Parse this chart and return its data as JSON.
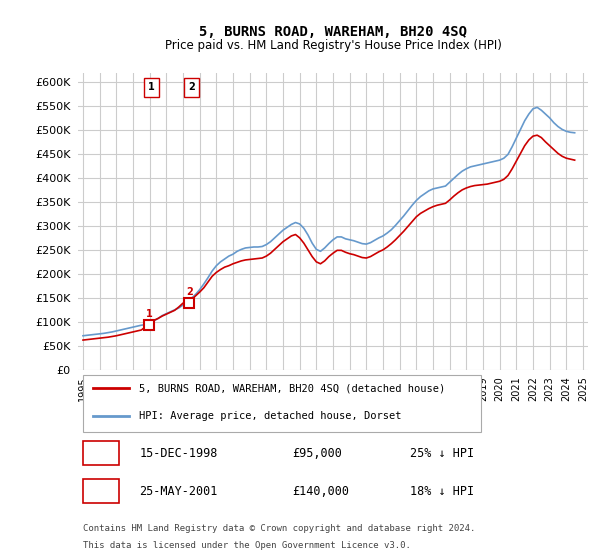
{
  "title": "5, BURNS ROAD, WAREHAM, BH20 4SQ",
  "subtitle": "Price paid vs. HM Land Registry's House Price Index (HPI)",
  "legend_line1": "5, BURNS ROAD, WAREHAM, BH20 4SQ (detached house)",
  "legend_line2": "HPI: Average price, detached house, Dorset",
  "footer1": "Contains HM Land Registry data © Crown copyright and database right 2024.",
  "footer2": "This data is licensed under the Open Government Licence v3.0.",
  "transaction1_label": "1",
  "transaction1_date": "15-DEC-1998",
  "transaction1_price": "£95,000",
  "transaction1_hpi": "25% ↓ HPI",
  "transaction2_label": "2",
  "transaction2_date": "25-MAY-2001",
  "transaction2_price": "£140,000",
  "transaction2_hpi": "18% ↓ HPI",
  "red_color": "#cc0000",
  "blue_color": "#6699cc",
  "background_color": "#ffffff",
  "grid_color": "#cccccc",
  "ylim": [
    0,
    620000
  ],
  "yticks": [
    0,
    50000,
    100000,
    150000,
    200000,
    250000,
    300000,
    350000,
    400000,
    450000,
    500000,
    550000,
    600000
  ],
  "hpi_data": {
    "years_float": [
      1995.0,
      1995.25,
      1995.5,
      1995.75,
      1996.0,
      1996.25,
      1996.5,
      1996.75,
      1997.0,
      1997.25,
      1997.5,
      1997.75,
      1998.0,
      1998.25,
      1998.5,
      1998.92,
      1999.0,
      1999.25,
      1999.5,
      1999.75,
      2000.0,
      2000.25,
      2000.5,
      2000.75,
      2001.0,
      2001.25,
      2001.5,
      2001.75,
      2002.0,
      2002.25,
      2002.5,
      2002.75,
      2003.0,
      2003.25,
      2003.5,
      2003.75,
      2004.0,
      2004.25,
      2004.5,
      2004.75,
      2005.0,
      2005.25,
      2005.5,
      2005.75,
      2006.0,
      2006.25,
      2006.5,
      2006.75,
      2007.0,
      2007.25,
      2007.5,
      2007.75,
      2008.0,
      2008.25,
      2008.5,
      2008.75,
      2009.0,
      2009.25,
      2009.5,
      2009.75,
      2010.0,
      2010.25,
      2010.5,
      2010.75,
      2011.0,
      2011.25,
      2011.5,
      2011.75,
      2012.0,
      2012.25,
      2012.5,
      2012.75,
      2013.0,
      2013.25,
      2013.5,
      2013.75,
      2014.0,
      2014.25,
      2014.5,
      2014.75,
      2015.0,
      2015.25,
      2015.5,
      2015.75,
      2016.0,
      2016.25,
      2016.5,
      2016.75,
      2017.0,
      2017.25,
      2017.5,
      2017.75,
      2018.0,
      2018.25,
      2018.5,
      2018.75,
      2019.0,
      2019.25,
      2019.5,
      2019.75,
      2020.0,
      2020.25,
      2020.5,
      2020.75,
      2021.0,
      2021.25,
      2021.5,
      2021.75,
      2022.0,
      2022.25,
      2022.5,
      2022.75,
      2023.0,
      2023.25,
      2023.5,
      2023.75,
      2024.0,
      2024.25,
      2024.5
    ],
    "values": [
      72000,
      73000,
      74000,
      75000,
      76000,
      77000,
      78500,
      80000,
      82000,
      84000,
      86000,
      88000,
      90000,
      92000,
      94000,
      96000,
      99000,
      103000,
      108000,
      114000,
      118000,
      122000,
      126000,
      130000,
      136000,
      142000,
      150000,
      158000,
      168000,
      180000,
      193000,
      207000,
      218000,
      226000,
      232000,
      238000,
      242000,
      248000,
      252000,
      255000,
      256000,
      257000,
      257000,
      258000,
      262000,
      268000,
      276000,
      284000,
      292000,
      298000,
      304000,
      308000,
      305000,
      296000,
      282000,
      265000,
      252000,
      248000,
      255000,
      264000,
      272000,
      278000,
      278000,
      274000,
      272000,
      270000,
      267000,
      264000,
      263000,
      266000,
      271000,
      276000,
      280000,
      286000,
      293000,
      302000,
      312000,
      322000,
      333000,
      344000,
      354000,
      362000,
      368000,
      374000,
      378000,
      380000,
      382000,
      384000,
      392000,
      400000,
      408000,
      415000,
      420000,
      424000,
      426000,
      428000,
      430000,
      432000,
      434000,
      436000,
      438000,
      442000,
      450000,
      466000,
      484000,
      502000,
      520000,
      534000,
      545000,
      548000,
      542000,
      534000,
      526000,
      516000,
      508000,
      502000,
      498000,
      496000,
      495000
    ]
  },
  "red_data": {
    "years_float": [
      1995.0,
      1995.25,
      1995.5,
      1995.75,
      1996.0,
      1996.25,
      1996.5,
      1996.75,
      1997.0,
      1997.25,
      1997.5,
      1997.75,
      1998.0,
      1998.25,
      1998.5,
      1998.92,
      1999.0,
      1999.25,
      1999.5,
      1999.75,
      2000.0,
      2000.25,
      2000.5,
      2000.75,
      2001.0,
      2001.38,
      2001.5,
      2001.75,
      2002.0,
      2002.25,
      2002.5,
      2002.75,
      2003.0,
      2003.25,
      2003.5,
      2003.75,
      2004.0,
      2004.25,
      2004.5,
      2004.75,
      2005.0,
      2005.25,
      2005.5,
      2005.75,
      2006.0,
      2006.25,
      2006.5,
      2006.75,
      2007.0,
      2007.25,
      2007.5,
      2007.75,
      2008.0,
      2008.25,
      2008.5,
      2008.75,
      2009.0,
      2009.25,
      2009.5,
      2009.75,
      2010.0,
      2010.25,
      2010.5,
      2010.75,
      2011.0,
      2011.25,
      2011.5,
      2011.75,
      2012.0,
      2012.25,
      2012.5,
      2012.75,
      2013.0,
      2013.25,
      2013.5,
      2013.75,
      2014.0,
      2014.25,
      2014.5,
      2014.75,
      2015.0,
      2015.25,
      2015.5,
      2015.75,
      2016.0,
      2016.25,
      2016.5,
      2016.75,
      2017.0,
      2017.25,
      2017.5,
      2017.75,
      2018.0,
      2018.25,
      2018.5,
      2018.75,
      2019.0,
      2019.25,
      2019.5,
      2019.75,
      2020.0,
      2020.25,
      2020.5,
      2020.75,
      2021.0,
      2021.25,
      2021.5,
      2021.75,
      2022.0,
      2022.25,
      2022.5,
      2022.75,
      2023.0,
      2023.25,
      2023.5,
      2023.75,
      2024.0,
      2024.25,
      2024.5
    ],
    "values": [
      63000,
      64000,
      65000,
      66000,
      67000,
      68000,
      69000,
      70500,
      72000,
      74000,
      76000,
      78000,
      80000,
      82000,
      84000,
      95000,
      100000,
      104000,
      108000,
      113000,
      117000,
      121000,
      125000,
      132000,
      140000,
      140000,
      147000,
      155000,
      163000,
      172000,
      184000,
      196000,
      204000,
      210000,
      215000,
      218000,
      222000,
      225000,
      228000,
      230000,
      231000,
      232000,
      233000,
      234000,
      238000,
      244000,
      252000,
      260000,
      268000,
      274000,
      280000,
      283000,
      276000,
      265000,
      251000,
      237000,
      226000,
      222000,
      228000,
      237000,
      244000,
      250000,
      250000,
      246000,
      243000,
      241000,
      238000,
      235000,
      234000,
      237000,
      242000,
      247000,
      251000,
      257000,
      264000,
      272000,
      281000,
      290000,
      300000,
      310000,
      320000,
      327000,
      332000,
      337000,
      341000,
      344000,
      346000,
      348000,
      355000,
      363000,
      370000,
      376000,
      380000,
      383000,
      385000,
      386000,
      387000,
      388000,
      390000,
      392000,
      394000,
      398000,
      406000,
      420000,
      436000,
      452000,
      468000,
      480000,
      488000,
      490000,
      485000,
      476000,
      468000,
      460000,
      452000,
      446000,
      442000,
      440000,
      438000
    ]
  },
  "transaction_points": [
    {
      "year": 1998.958,
      "value": 95000,
      "label": "1"
    },
    {
      "year": 2001.388,
      "value": 140000,
      "label": "2"
    }
  ],
  "xtick_years": [
    1995,
    1996,
    1997,
    1998,
    1999,
    2000,
    2001,
    2002,
    2003,
    2004,
    2005,
    2006,
    2007,
    2008,
    2009,
    2010,
    2011,
    2012,
    2013,
    2014,
    2015,
    2016,
    2017,
    2018,
    2019,
    2020,
    2021,
    2022,
    2023,
    2024,
    2025
  ]
}
